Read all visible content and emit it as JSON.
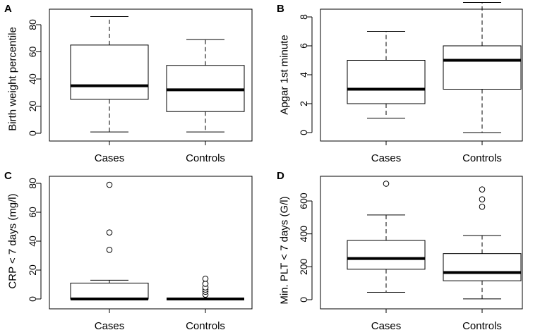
{
  "chart_data": [
    {
      "panel": "A",
      "type": "box",
      "ylabel": "Birth weight percentile",
      "ylim": [
        0,
        80
      ],
      "yticks": [
        0,
        20,
        40,
        60,
        80
      ],
      "categories": [
        "Cases",
        "Controls"
      ],
      "boxes": [
        {
          "name": "Cases",
          "min": 1,
          "q1": 25,
          "median": 35,
          "q3": 65,
          "max": 86,
          "outliers": []
        },
        {
          "name": "Controls",
          "min": 1,
          "q1": 16,
          "median": 32,
          "q3": 50,
          "max": 69,
          "outliers": []
        }
      ]
    },
    {
      "panel": "B",
      "type": "box",
      "ylabel": "Apgar 1st minute",
      "ylim": [
        0,
        9
      ],
      "yticks": [
        0,
        2,
        4,
        6,
        8
      ],
      "categories": [
        "Cases",
        "Controls"
      ],
      "boxes": [
        {
          "name": "Cases",
          "min": 1,
          "q1": 2,
          "median": 3,
          "q3": 5,
          "max": 7,
          "outliers": []
        },
        {
          "name": "Controls",
          "min": 0,
          "q1": 3,
          "median": 5,
          "q3": 6,
          "max": 9,
          "outliers": []
        }
      ]
    },
    {
      "panel": "C",
      "type": "box",
      "ylabel": "CRP < 7 days (mg/l)",
      "ylim": [
        0,
        80
      ],
      "yticks": [
        0,
        20,
        40,
        60,
        80
      ],
      "categories": [
        "Cases",
        "Controls"
      ],
      "boxes": [
        {
          "name": "Cases",
          "min": 0,
          "q1": 0,
          "median": 0,
          "q3": 11,
          "max": 13,
          "outliers": [
            34,
            46,
            79
          ]
        },
        {
          "name": "Controls",
          "min": 0,
          "q1": 0,
          "median": 0,
          "q3": 0,
          "max": 0,
          "outliers": [
            3,
            5,
            6.5,
            8,
            10.5,
            14
          ]
        }
      ]
    },
    {
      "panel": "D",
      "type": "box",
      "ylabel": "Min. PLT < 7 days (G/l)",
      "ylim": [
        0,
        700
      ],
      "yticks": [
        0,
        200,
        400,
        600
      ],
      "categories": [
        "Cases",
        "Controls"
      ],
      "boxes": [
        {
          "name": "Cases",
          "min": 45,
          "q1": 185,
          "median": 250,
          "q3": 360,
          "max": 515,
          "outliers": [
            705
          ]
        },
        {
          "name": "Controls",
          "min": 5,
          "q1": 115,
          "median": 165,
          "q3": 280,
          "max": 390,
          "outliers": [
            565,
            610,
            670
          ]
        }
      ]
    }
  ]
}
